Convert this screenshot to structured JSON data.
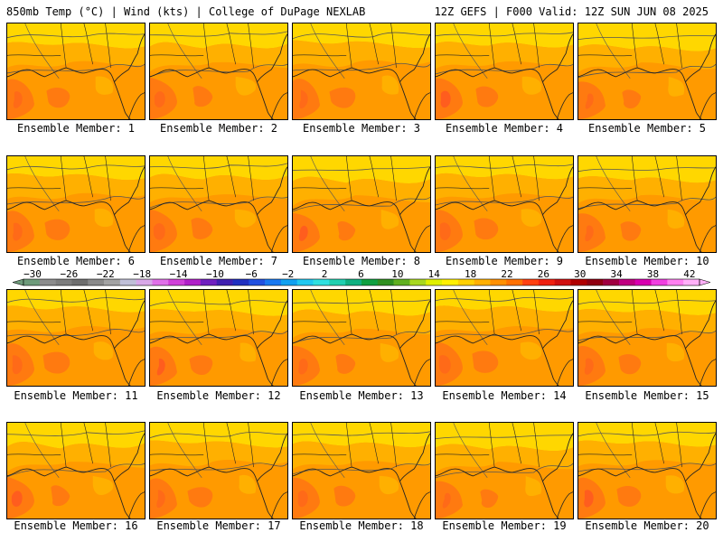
{
  "header": {
    "left_title": "850mb Temp (°C) | Wind (kts) | College of DuPage NEXLAB",
    "right_title": "12Z GEFS | F000 Valid: 12Z SUN JUN 08 2025"
  },
  "panels": [
    {
      "label": "Ensemble Member: 1"
    },
    {
      "label": "Ensemble Member: 2"
    },
    {
      "label": "Ensemble Member: 3"
    },
    {
      "label": "Ensemble Member: 4"
    },
    {
      "label": "Ensemble Member: 5"
    },
    {
      "label": "Ensemble Member: 6"
    },
    {
      "label": "Ensemble Member: 7"
    },
    {
      "label": "Ensemble Member: 8"
    },
    {
      "label": "Ensemble Member: 9"
    },
    {
      "label": "Ensemble Member: 10"
    },
    {
      "label": "Ensemble Member: 11"
    },
    {
      "label": "Ensemble Member: 12"
    },
    {
      "label": "Ensemble Member: 13"
    },
    {
      "label": "Ensemble Member: 14"
    },
    {
      "label": "Ensemble Member: 15"
    },
    {
      "label": "Ensemble Member: 16"
    },
    {
      "label": "Ensemble Member: 17"
    },
    {
      "label": "Ensemble Member: 18"
    },
    {
      "label": "Ensemble Member: 19"
    },
    {
      "label": "Ensemble Member: 20"
    }
  ],
  "colorbar": {
    "tick_labels": [
      "−30",
      "−26",
      "−22",
      "−18",
      "−14",
      "−10",
      "−6",
      "−2",
      "2",
      "6",
      "10",
      "14",
      "18",
      "22",
      "26",
      "30",
      "34",
      "38",
      "42"
    ],
    "colors": [
      "#6e9b7a",
      "#8c8c8c",
      "#7d7d7d",
      "#6e6e6e",
      "#8a8a8a",
      "#a3a3a3",
      "#c0c0d8",
      "#d8a8e8",
      "#e070e8",
      "#d040d8",
      "#b020c8",
      "#7020c0",
      "#4020b0",
      "#2030c0",
      "#2050e0",
      "#1878f0",
      "#10a0f0",
      "#20c8f0",
      "#30e0e0",
      "#20d0b0",
      "#10b080",
      "#10a040",
      "#309020",
      "#60b020",
      "#a8d820",
      "#e0f000",
      "#fff000",
      "#ffd000",
      "#ffb000",
      "#ff9000",
      "#ff7000",
      "#ff4010",
      "#f02010",
      "#d01010",
      "#b00000",
      "#900010",
      "#a00040",
      "#c00080",
      "#d800b0",
      "#f040e0",
      "#ff80f0",
      "#ffb0f8"
    ]
  },
  "map_colors": {
    "c14": "#ffd700",
    "c18": "#ffb000",
    "c20": "#ff9a00",
    "c22": "#ff7a10",
    "c26": "#ff5a20",
    "coast": "#222222",
    "contour": "#555555"
  }
}
